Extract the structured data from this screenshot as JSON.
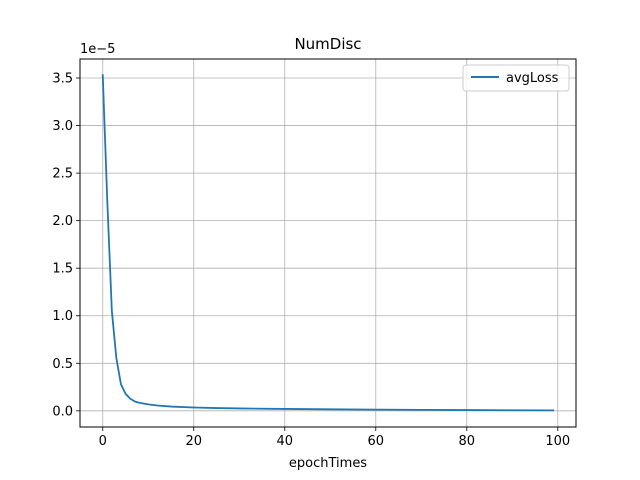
{
  "chart_data": {
    "type": "line",
    "title": "NumDisc",
    "xlabel": "epochTimes",
    "ylabel": "",
    "y_offset_text": "1e−5",
    "xlim": [
      -5,
      104
    ],
    "ylim": [
      -1.7e-06,
      3.7e-05
    ],
    "xticks": [
      0,
      20,
      40,
      60,
      80,
      100
    ],
    "xtick_labels": [
      "0",
      "20",
      "40",
      "60",
      "80",
      "100"
    ],
    "yticks": [
      0,
      5e-06,
      1e-05,
      1.5e-05,
      2e-05,
      2.5e-05,
      3e-05,
      3.5e-05
    ],
    "ytick_labels": [
      "0.0",
      "0.5",
      "1.0",
      "1.5",
      "2.0",
      "2.5",
      "3.0",
      "3.5"
    ],
    "grid": true,
    "legend_position": "top-right",
    "series": [
      {
        "name": "avgLoss",
        "color": "#1f77b4",
        "x": [
          0,
          1,
          2,
          3,
          4,
          5,
          6,
          7,
          8,
          10,
          12,
          15,
          20,
          25,
          30,
          40,
          50,
          60,
          70,
          80,
          90,
          99
        ],
        "y": [
          3.53e-05,
          2.2e-05,
          1.05e-05,
          5.5e-06,
          2.8e-06,
          1.8e-06,
          1.3e-06,
          1e-06,
          8.5e-07,
          6.8e-07,
          5.6e-07,
          4.5e-07,
          3.5e-07,
          2.9e-07,
          2.5e-07,
          2e-07,
          1.6e-07,
          1.3e-07,
          1e-07,
          8e-08,
          6e-08,
          5e-08
        ]
      }
    ]
  }
}
